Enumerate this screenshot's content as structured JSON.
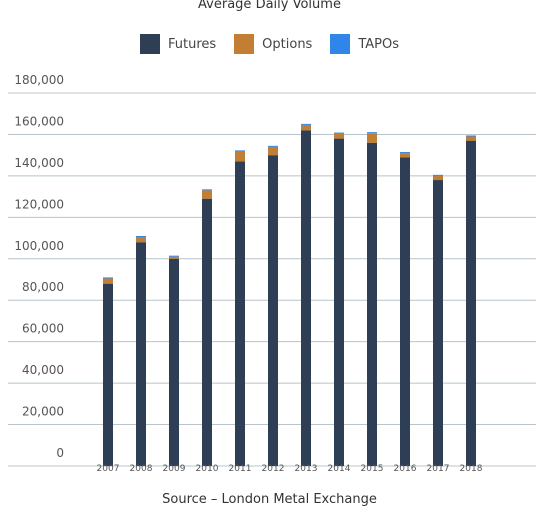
{
  "colors": {
    "futures": "#2e3e54",
    "options": "#c27f33",
    "tapos": "#2f86e8",
    "grid": "#b9c4cc"
  },
  "chart_data": {
    "type": "bar",
    "stacked": true,
    "title": "Average Daily Volume",
    "source": "Source – London Metal Exchange",
    "legend_position": "top-center",
    "categories": [
      "2007",
      "2008",
      "2009",
      "2010",
      "2011",
      "2012",
      "2013",
      "2014",
      "2015",
      "2016",
      "2017",
      "2018"
    ],
    "series": [
      {
        "name": "Futures",
        "values": [
          88000,
          108000,
          100000,
          129000,
          147000,
          150000,
          162000,
          158000,
          156000,
          149000,
          138000,
          157000
        ]
      },
      {
        "name": "Options",
        "values": [
          2500,
          2500,
          1000,
          4000,
          4800,
          4000,
          2600,
          2400,
          4600,
          2000,
          2000,
          2000
        ]
      },
      {
        "name": "TAPOs",
        "values": [
          500,
          500,
          500,
          500,
          500,
          500,
          500,
          500,
          500,
          500,
          500,
          500
        ]
      }
    ],
    "ylim": [
      0,
      180000
    ],
    "yticks": [
      "0",
      "20,000",
      "40,000",
      "60,000",
      "80,000",
      "100,000",
      "120,000",
      "140,000",
      "160,000",
      "180,000"
    ],
    "grid": true
  }
}
